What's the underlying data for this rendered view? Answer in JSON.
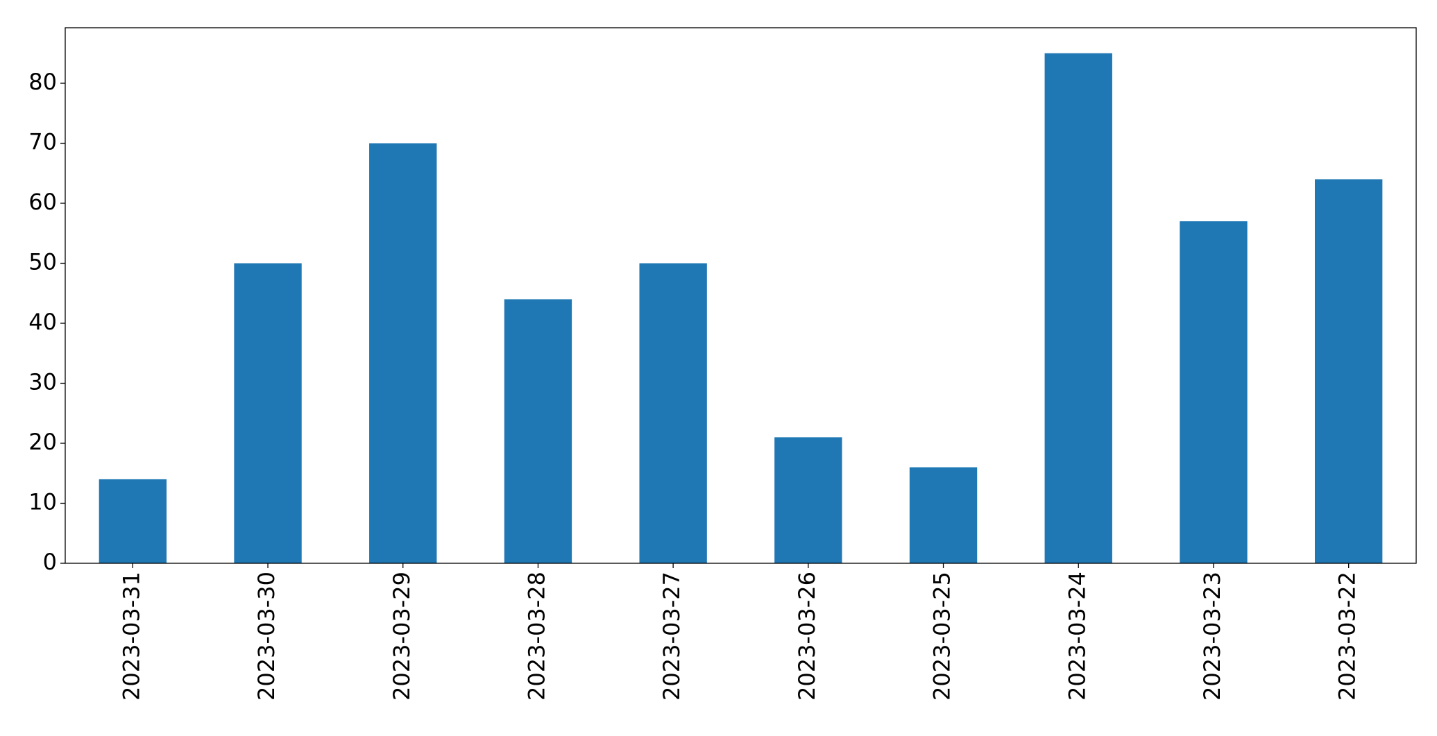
{
  "chart_data": {
    "type": "bar",
    "categories": [
      "2023-03-31",
      "2023-03-30",
      "2023-03-29",
      "2023-03-28",
      "2023-03-27",
      "2023-03-26",
      "2023-03-25",
      "2023-03-24",
      "2023-03-23",
      "2023-03-22"
    ],
    "values": [
      14,
      50,
      70,
      44,
      50,
      21,
      16,
      85,
      57,
      64
    ],
    "color": "#1f77b4",
    "ylim": [
      0,
      89.25
    ],
    "yticks": [
      0,
      10,
      20,
      30,
      40,
      50,
      60,
      70,
      80
    ],
    "grid": false
  }
}
